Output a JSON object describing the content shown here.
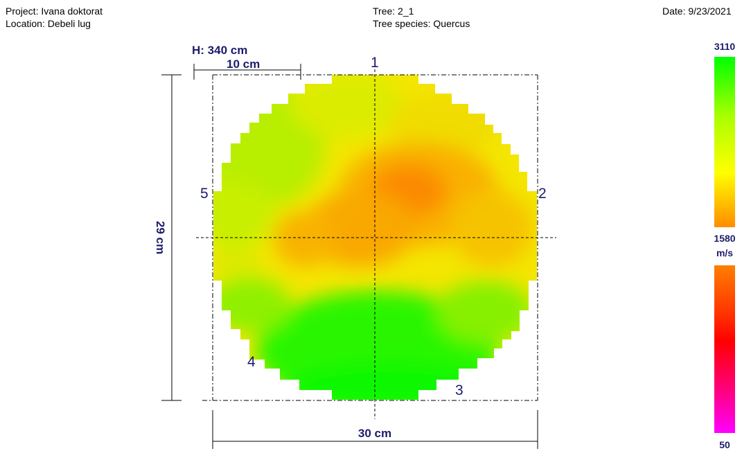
{
  "header": {
    "project": "Project: Ivana doktorat",
    "location": "Location: Debeli lug",
    "tree": "Tree: 2_1",
    "species": "Tree species: Quercus",
    "date": "Date: 9/23/2021"
  },
  "diagram": {
    "height_label": "H: 340 cm",
    "grid_label": "10 cm",
    "vertical_dimension": "29 cm",
    "horizontal_dimension": "30 cm",
    "sensors": [
      "1",
      "2",
      "3",
      "4",
      "5"
    ]
  },
  "color_scale": {
    "max": "3110",
    "mid": "1580",
    "unit": "m/s",
    "min": "50",
    "colors": {
      "green": "#00ff00",
      "yellow": "#ffff00",
      "orange": "#ff7f00",
      "red": "#ff0000",
      "magenta": "#ff00ff"
    }
  }
}
